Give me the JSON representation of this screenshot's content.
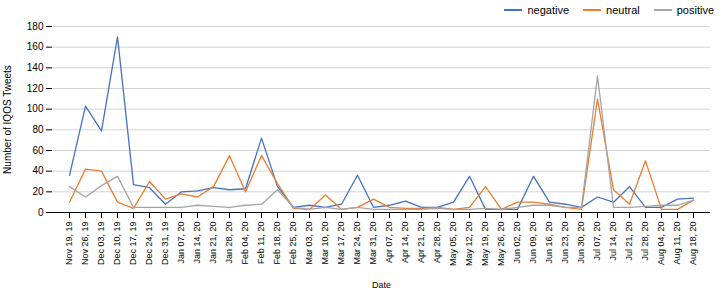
{
  "chart_data": {
    "type": "line",
    "xlabel": "Date",
    "ylabel": "Number of IQOS Tweets",
    "categories": [
      "Nov 19, 19",
      "Nov 26, 19",
      "Dec 03, 19",
      "Dec 10, 19",
      "Dec 17, 19",
      "Dec 24, 19",
      "Dec 31, 19",
      "Jan 07, 20",
      "Jan 14, 20",
      "Jan 21, 20",
      "Jan 28, 20",
      "Feb 04, 20",
      "Feb 11, 20",
      "Feb 18, 20",
      "Feb 25, 20",
      "Mar 03, 20",
      "Mar 10, 20",
      "Mar 17, 20",
      "Mar 24, 20",
      "Mar 31, 20",
      "Apr 07, 20",
      "Apr 14, 20",
      "Apr 21, 20",
      "Apr 28, 20",
      "May 05, 20",
      "May 12, 20",
      "May 19, 20",
      "May 26, 20",
      "Jun 02, 20",
      "Jun 09, 20",
      "Jun 16, 20",
      "Jun 23, 20",
      "Jun 30, 20",
      "Jul 07, 20",
      "Jul 14, 20",
      "Jul 21, 20",
      "Jul 28, 20",
      "Aug 04, 20",
      "Aug 11, 20",
      "Aug 18, 20"
    ],
    "series": [
      {
        "name": "negative",
        "color": "#4472C4",
        "values": [
          36,
          103,
          79,
          170,
          27,
          24,
          8,
          20,
          21,
          24,
          22,
          23,
          72,
          25,
          5,
          7,
          5,
          8,
          36,
          5,
          7,
          11,
          5,
          5,
          10,
          35,
          3,
          3,
          3,
          35,
          10,
          8,
          5,
          15,
          10,
          25,
          5,
          5,
          13,
          14
        ]
      },
      {
        "name": "neutral",
        "color": "#ED7D31",
        "values": [
          10,
          42,
          40,
          10,
          4,
          30,
          13,
          18,
          15,
          25,
          55,
          20,
          55,
          28,
          4,
          3,
          17,
          3,
          5,
          13,
          5,
          4,
          4,
          5,
          3,
          5,
          25,
          3,
          10,
          10,
          8,
          5,
          3,
          110,
          22,
          8,
          50,
          3,
          3,
          12
        ]
      },
      {
        "name": "positive",
        "color": "#A5A5A5",
        "values": [
          25,
          15,
          26,
          35,
          5,
          5,
          5,
          5,
          7,
          6,
          5,
          7,
          8,
          22,
          5,
          3,
          5,
          3,
          5,
          3,
          3,
          3,
          3,
          4,
          3,
          3,
          4,
          3,
          5,
          7,
          7,
          5,
          5,
          132,
          5,
          5,
          6,
          7,
          7,
          12
        ]
      }
    ],
    "ylim": [
      0,
      180
    ],
    "yticks": [
      0,
      20,
      40,
      60,
      80,
      100,
      120,
      140,
      160,
      180
    ],
    "grid": true,
    "legend": "upper right"
  }
}
